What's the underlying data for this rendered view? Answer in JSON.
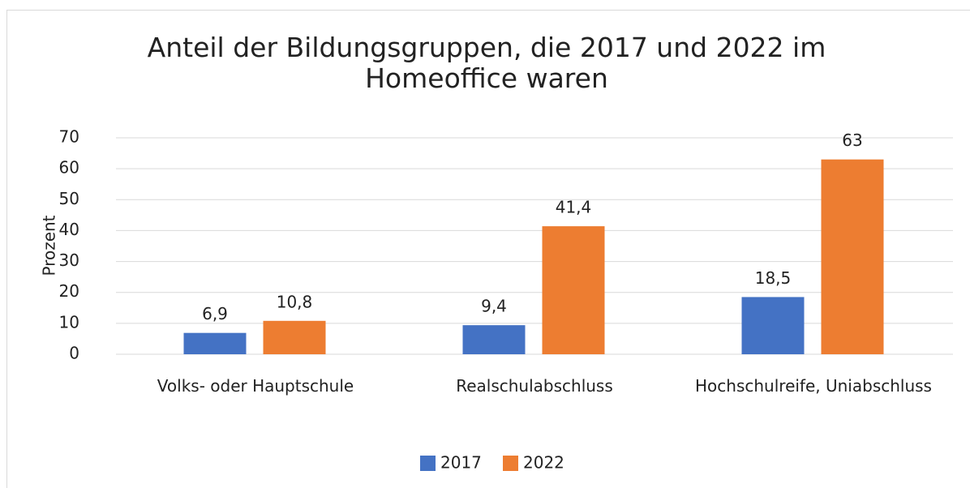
{
  "chart_data": {
    "type": "bar",
    "title": "Anteil der Bildungsgruppen, die 2017 und 2022 im Homeoffice waren",
    "y_label": "Prozent",
    "categories": [
      "Volks- oder Hauptschule",
      "Realschulabschluss",
      "Hochschulreife, Uniabschluss"
    ],
    "series": [
      {
        "name": "2017",
        "color": "#4472c4",
        "values": [
          6.9,
          9.4,
          18.5
        ],
        "value_labels": [
          "6,9",
          "9,4",
          "18,5"
        ]
      },
      {
        "name": "2022",
        "color": "#ed7d31",
        "values": [
          10.8,
          41.4,
          63
        ],
        "value_labels": [
          "10,8",
          "41,4",
          "63"
        ]
      }
    ],
    "ylim": [
      0,
      70
    ],
    "yticks": [
      0,
      10,
      20,
      30,
      40,
      50,
      60,
      70
    ],
    "grid": true,
    "legend": "bottom"
  }
}
